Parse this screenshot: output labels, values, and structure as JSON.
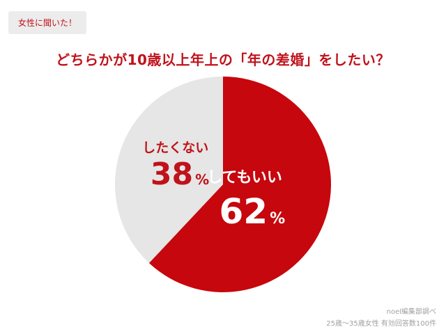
{
  "badge": "女性に聞いた！",
  "title": "どちらかが10歳以上年上の「年の差婚」をしたい？",
  "chart_data": {
    "type": "pie",
    "slices": [
      {
        "label": "してもいい",
        "value": 62,
        "color": "#c6070d",
        "text_color": "#ffffff"
      },
      {
        "label": "したくない",
        "value": 38,
        "color": "#e6e6e6",
        "text_color": "#c0121b"
      }
    ],
    "value_suffix": "%"
  },
  "credit": {
    "line1": "noel編集部調べ",
    "line2": "25歳〜35歳女性 有効回答数100件"
  }
}
